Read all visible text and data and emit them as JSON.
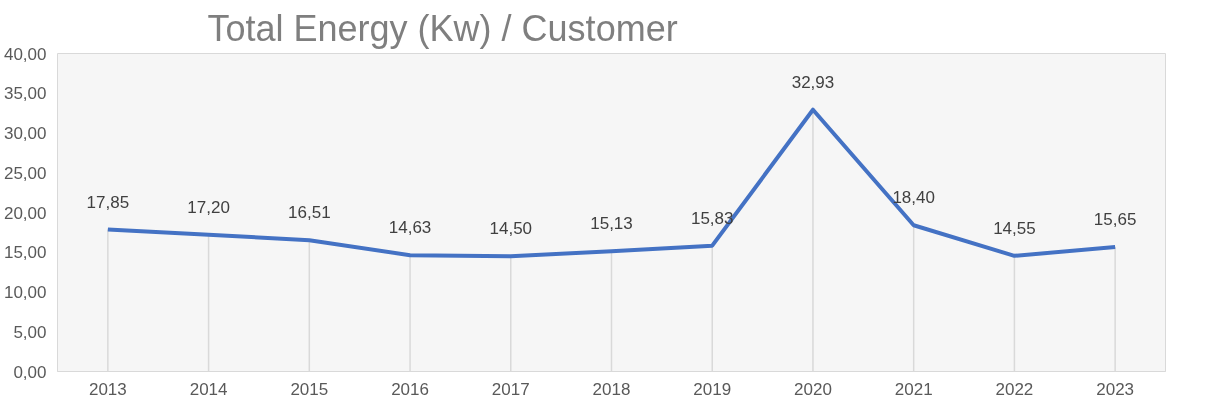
{
  "chart_data": {
    "type": "line",
    "title": "Total Energy (Kw) / Customer",
    "categories": [
      "2013",
      "2014",
      "2015",
      "2016",
      "2017",
      "2018",
      "2019",
      "2020",
      "2021",
      "2022",
      "2023"
    ],
    "series": [
      {
        "color": "#4472c4",
        "values": [
          17.85,
          17.2,
          16.51,
          14.63,
          14.5,
          15.13,
          15.83,
          32.93,
          18.4,
          14.55,
          15.65
        ],
        "value_labels": [
          "17,85",
          "17,20",
          "16,51",
          "14,63",
          "14,50",
          "15,13",
          "15,83",
          "32,93",
          "18,40",
          "14,55",
          "15,65"
        ]
      }
    ],
    "ylim": [
      0,
      40
    ],
    "yticks": [
      {
        "value": 0,
        "label": "0,00"
      },
      {
        "value": 5,
        "label": "5,00"
      },
      {
        "value": 10,
        "label": "10,00"
      },
      {
        "value": 15,
        "label": "15,00"
      },
      {
        "value": 20,
        "label": "20,00"
      },
      {
        "value": 25,
        "label": "25,00"
      },
      {
        "value": 30,
        "label": "30,00"
      },
      {
        "value": 35,
        "label": "35,00"
      },
      {
        "value": 40,
        "label": "40,00"
      }
    ],
    "grid": "x",
    "marker": "none",
    "line_style": "solid"
  }
}
